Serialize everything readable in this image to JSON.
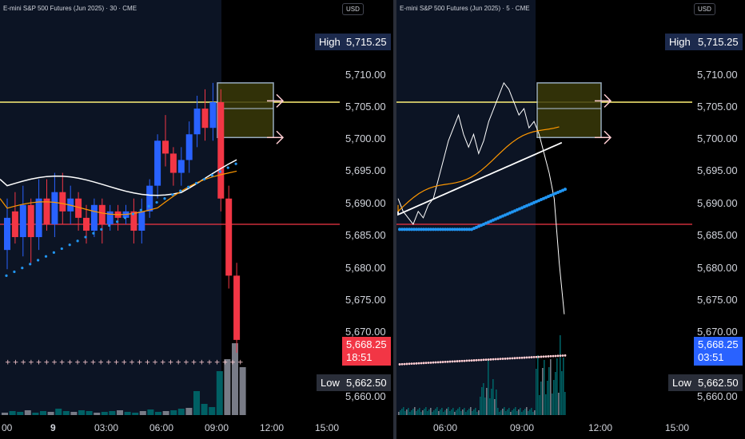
{
  "left": {
    "symbol": "E-mini S&P 500 Futures (Jun 2025) · 30 · CME",
    "currency": "USD",
    "high_label": "High",
    "high_value": "5,715.25",
    "low_label": "Low",
    "low_value": "5,662.50",
    "last_price": "5,668.25",
    "countdown": "18:51",
    "y_ticks": [
      "5,710.00",
      "5,705.00",
      "5,700.00",
      "5,695.00",
      "5,690.00",
      "5,685.00",
      "5,680.00",
      "5,675.00",
      "5,670.00",
      "5,660.00"
    ],
    "x_ticks": [
      "00",
      "9",
      "03:00",
      "06:00",
      "09:00",
      "12:00",
      "15:00"
    ]
  },
  "right": {
    "symbol": "E-mini S&P 500 Futures (Jun 2025) · 5 · CME",
    "currency": "USD",
    "high_label": "High",
    "high_value": "5,715.25",
    "low_label": "Low",
    "low_value": "5,662.50",
    "last_price": "5,668.25",
    "countdown": "03:51",
    "y_ticks": [
      "5,710.00",
      "5,705.00",
      "5,700.00",
      "5,695.00",
      "5,690.00",
      "5,685.00",
      "5,680.00",
      "5,675.00",
      "5,670.00",
      "5,660.00"
    ],
    "x_ticks": [
      "06:00",
      "09:00",
      "12:00",
      "15:00"
    ]
  },
  "colors": {
    "up": "#2962ff",
    "down": "#f23645",
    "yellow_line": "#fff176",
    "red_line": "#f23645",
    "sma_white": "#ffffff",
    "ema_orange": "#ff9800",
    "psar_blue": "#2196f3",
    "volume_teal": "#006064",
    "volume_grey": "#787b86"
  }
}
